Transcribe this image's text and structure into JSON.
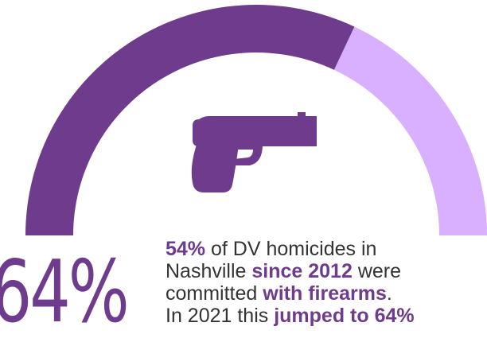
{
  "colors": {
    "primary": "#6f3b8c",
    "secondary": "#d8b0ff",
    "text": "#333333"
  },
  "chart_data": {
    "type": "gauge",
    "values": [
      64,
      36
    ],
    "max": 100,
    "big_value_label": "64%"
  },
  "icon": "handgun-icon",
  "caption": {
    "line1": {
      "hl": "54%",
      "rest": " of DV homicides in"
    },
    "line2": {
      "pre": "Nashville ",
      "hl": "since 2012",
      "post": " were"
    },
    "line3": {
      "pre": "committed ",
      "hl": "with firearms",
      "post": "."
    },
    "line4": {
      "pre": "In 2021 this ",
      "hl": "jumped to 64%"
    }
  }
}
